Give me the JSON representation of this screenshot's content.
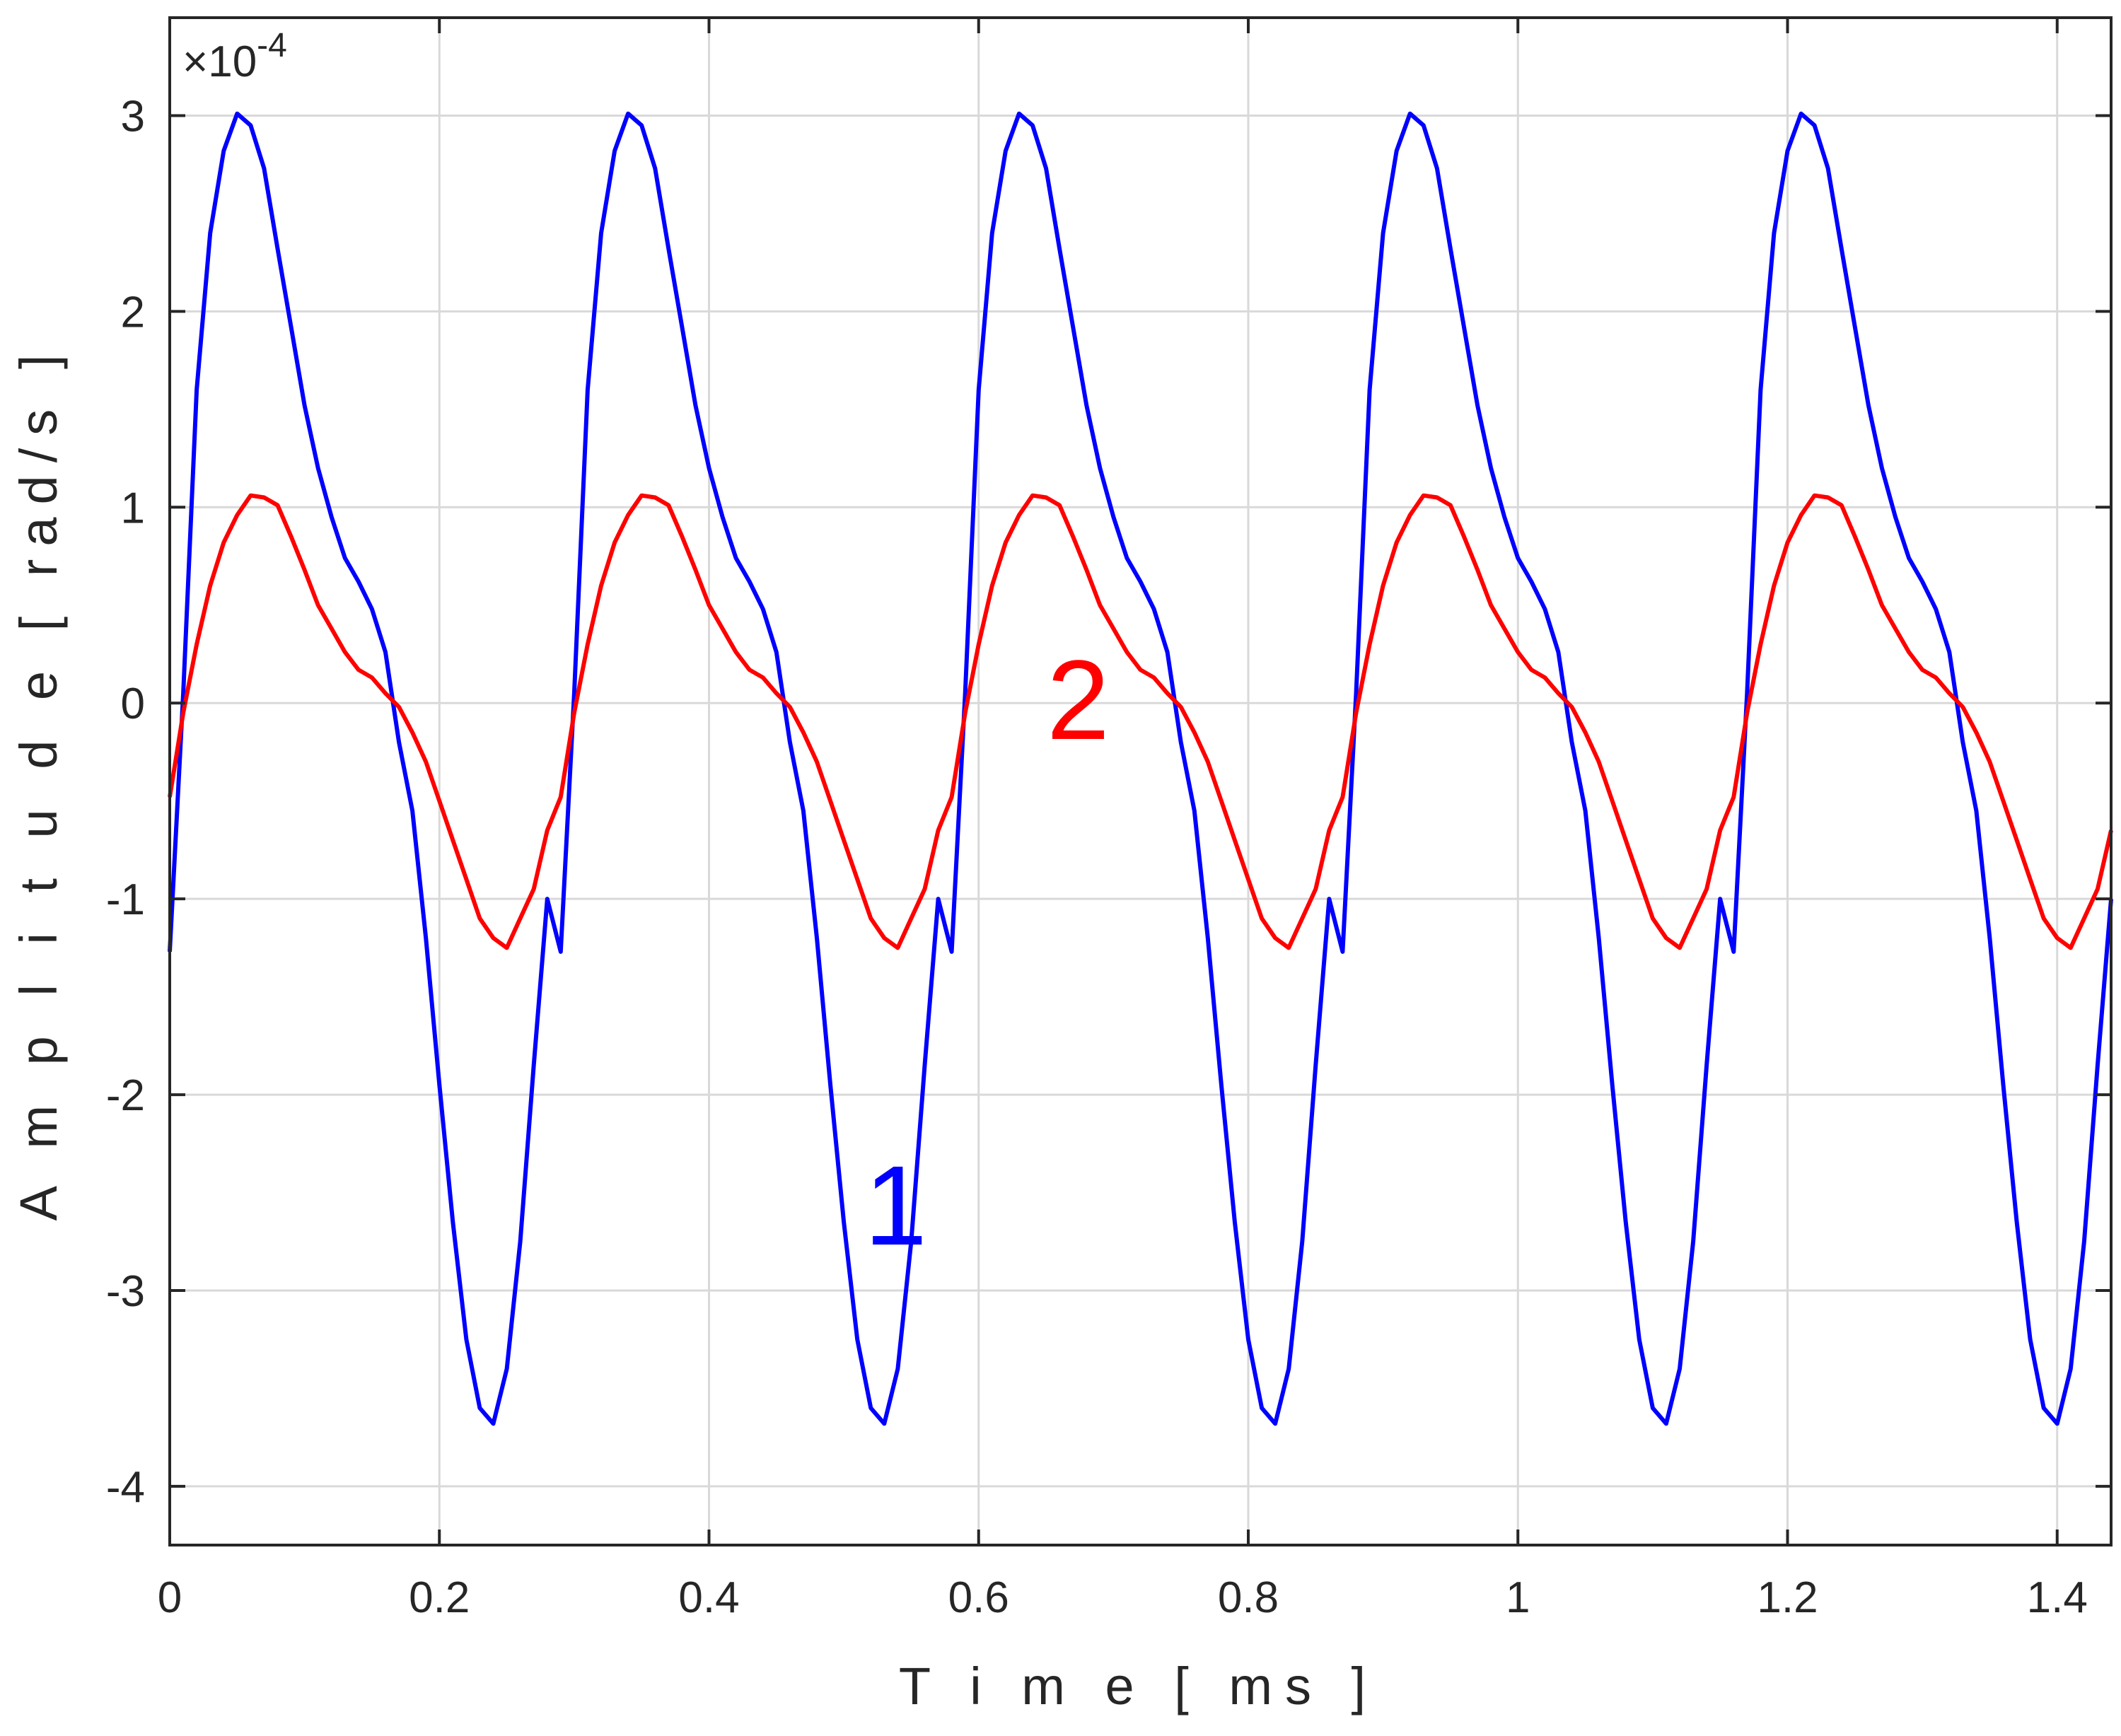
{
  "chart_data": {
    "type": "line",
    "xlabel": "T i m e [ ms ]",
    "ylabel": "A m p l i t u d e [ rad/s ]",
    "y_exponent": {
      "base": "×10",
      "power": "-4"
    },
    "xlim": [
      0,
      1.44
    ],
    "ylim": [
      -4.3,
      3.5
    ],
    "x_ticks": [
      0,
      0.2,
      0.4,
      0.6,
      0.8,
      1,
      1.2,
      1.4
    ],
    "x_tick_labels": [
      "0",
      "0.2",
      "0.4",
      "0.6",
      "0.8",
      "1",
      "1.2",
      "1.4"
    ],
    "y_ticks": [
      -4,
      -3,
      -2,
      -1,
      0,
      1,
      2,
      3
    ],
    "y_tick_labels": [
      "-4",
      "-3",
      "-2",
      "-1",
      "0",
      "1",
      "2",
      "3"
    ],
    "grid": true,
    "period_ms": 0.29,
    "series": [
      {
        "label": "1",
        "color": "#0000ff",
        "period_x": [
          0,
          0.01,
          0.02,
          0.03,
          0.04,
          0.05,
          0.06,
          0.07,
          0.08,
          0.09,
          0.1,
          0.11,
          0.12,
          0.13,
          0.14,
          0.15,
          0.16,
          0.17,
          0.18,
          0.19,
          0.2,
          0.21,
          0.22,
          0.23,
          0.24,
          0.25,
          0.26,
          0.27,
          0.28,
          0.29
        ],
        "period_y": [
          -1.27,
          0.05,
          1.6,
          2.4,
          2.82,
          3.01,
          2.95,
          2.73,
          2.32,
          1.92,
          1.52,
          1.2,
          0.95,
          0.74,
          0.62,
          0.48,
          0.26,
          -0.2,
          -0.55,
          -1.2,
          -1.95,
          -2.65,
          -3.25,
          -3.6,
          -3.68,
          -3.4,
          -2.75,
          -1.85,
          -1.0,
          -1.27
        ]
      },
      {
        "label": "2",
        "color": "#ff0000",
        "period_x": [
          0,
          0.01,
          0.02,
          0.03,
          0.04,
          0.05,
          0.06,
          0.07,
          0.08,
          0.09,
          0.1,
          0.11,
          0.12,
          0.13,
          0.14,
          0.15,
          0.16,
          0.17,
          0.18,
          0.19,
          0.2,
          0.21,
          0.22,
          0.23,
          0.24,
          0.25,
          0.26,
          0.27,
          0.28,
          0.29
        ],
        "period_y": [
          -0.48,
          -0.05,
          0.3,
          0.6,
          0.82,
          0.96,
          1.06,
          1.05,
          1.01,
          0.85,
          0.68,
          0.5,
          0.38,
          0.26,
          0.17,
          0.13,
          0.05,
          -0.02,
          -0.15,
          -0.3,
          -0.5,
          -0.7,
          -0.9,
          -1.1,
          -1.2,
          -1.25,
          -1.1,
          -0.95,
          -0.65,
          -0.48
        ]
      }
    ]
  }
}
